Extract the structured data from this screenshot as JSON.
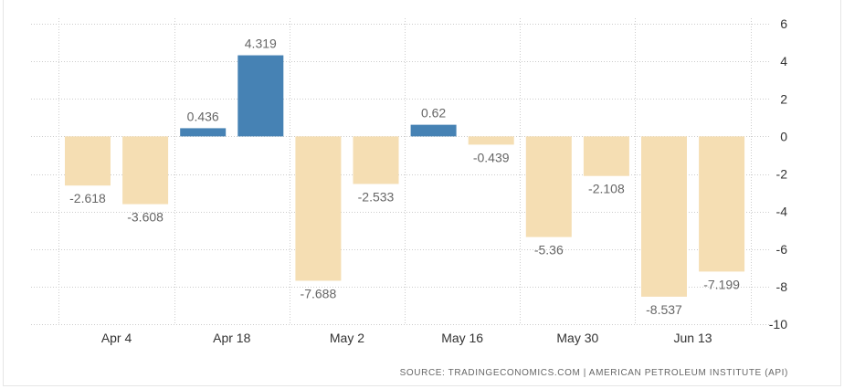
{
  "chart_data": {
    "type": "bar",
    "title": "",
    "xlabel": "",
    "ylabel": "",
    "ylim": [
      -10,
      6
    ],
    "yticks": [
      6,
      4,
      2,
      0,
      -2,
      -4,
      -6,
      -8,
      -10
    ],
    "xtick_labels": [
      {
        "label": "Apr 4",
        "index": 0.5
      },
      {
        "label": "Apr 18",
        "index": 2.5
      },
      {
        "label": "May 2",
        "index": 4.5
      },
      {
        "label": "May 16",
        "index": 6.5
      },
      {
        "label": "May 30",
        "index": 8.5
      },
      {
        "label": "Jun 13",
        "index": 10.5
      }
    ],
    "values": [
      -2.618,
      -3.608,
      0.436,
      4.319,
      -7.688,
      -2.533,
      0.62,
      -0.439,
      -5.36,
      -2.108,
      -8.537,
      -7.199
    ],
    "data_labels": [
      "-2.618",
      "-3.608",
      "0.436",
      "4.319",
      "-7.688",
      "-2.533",
      "0.62",
      "-0.439",
      "-5.36",
      "-2.108",
      "-8.537",
      "-7.199"
    ],
    "grid": true,
    "colors": {
      "positive": "#4682b4",
      "negative": "#f5deb3",
      "grid": "#cccccc"
    }
  },
  "source": "SOURCE: TRADINGECONOMICS.COM | AMERICAN PETROLEUM INSTITUTE (API)"
}
